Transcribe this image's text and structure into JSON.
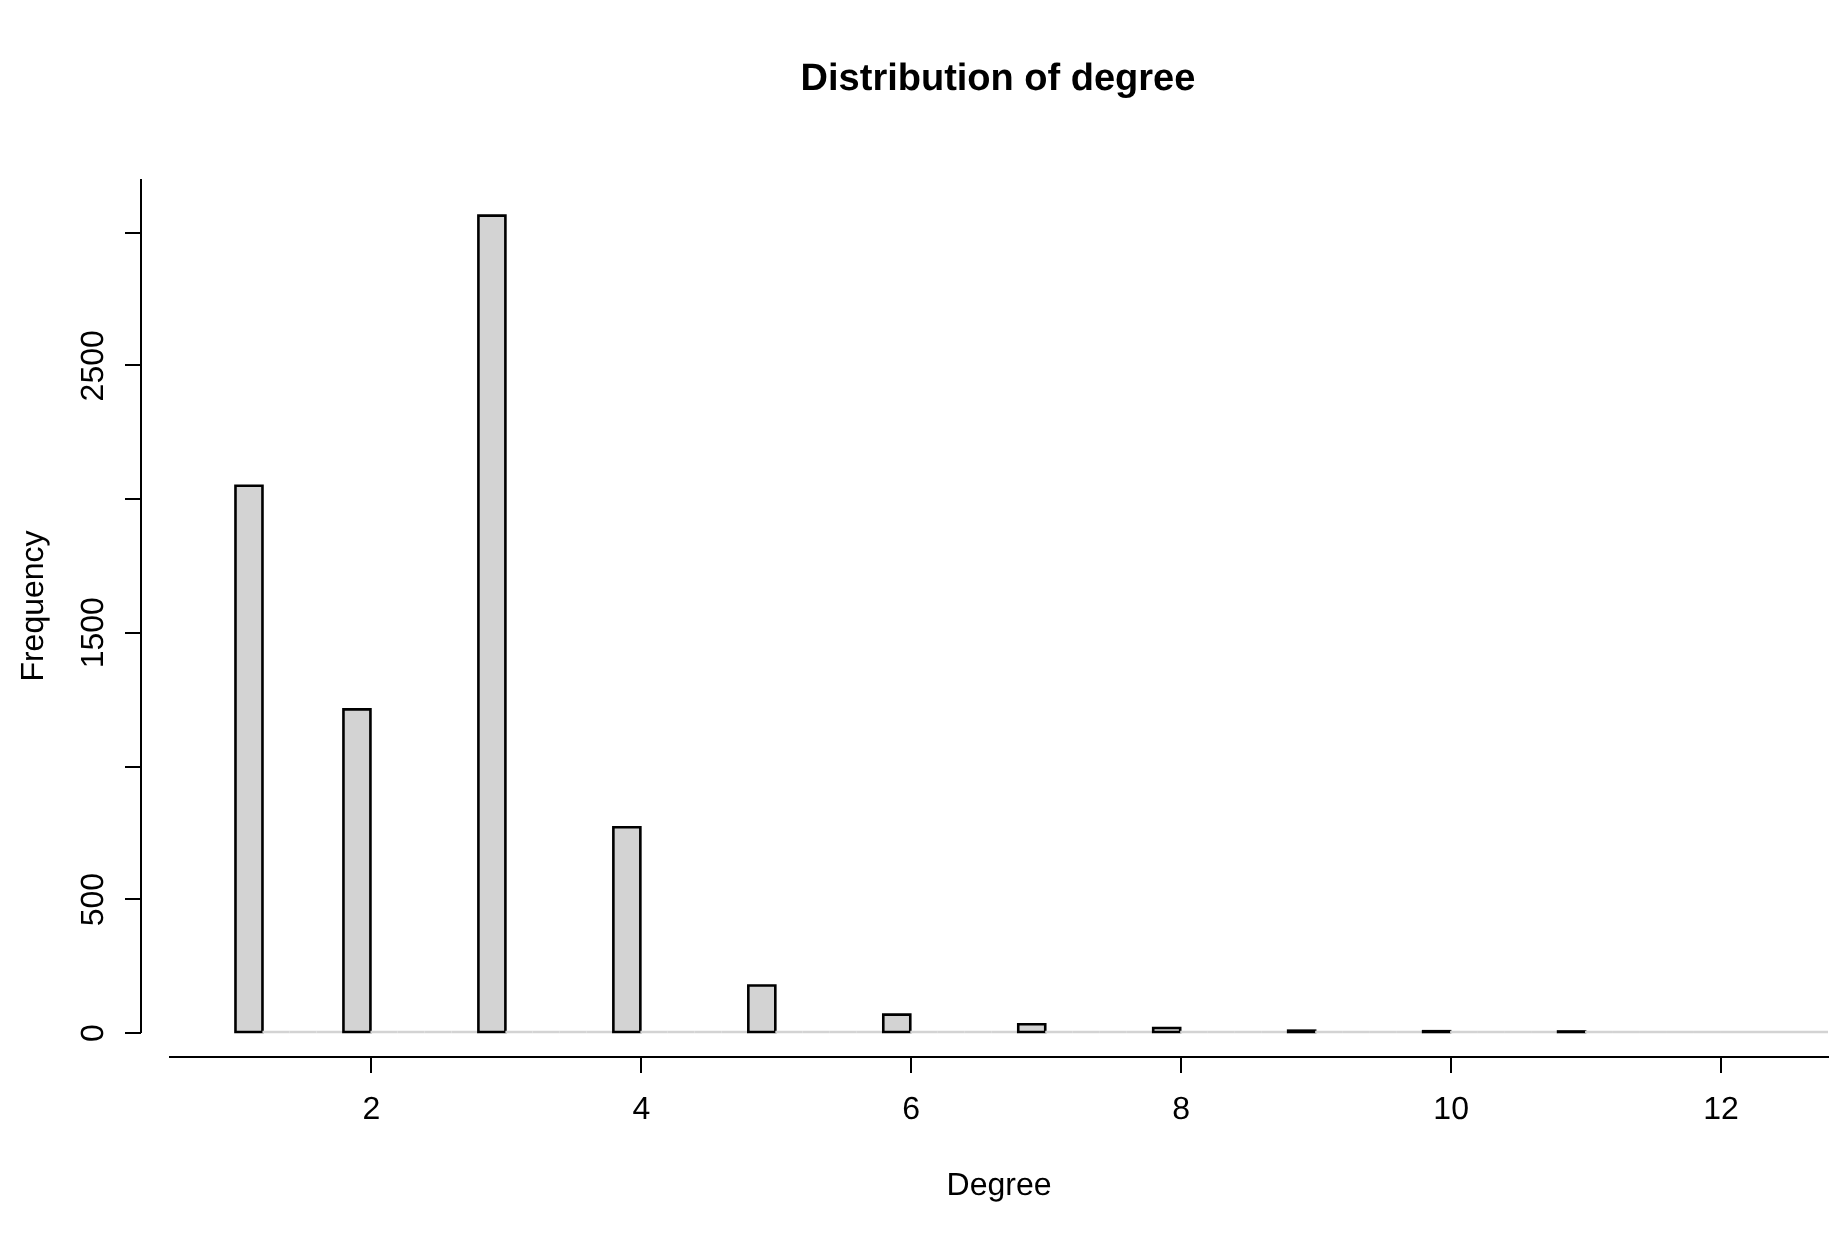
{
  "chart_data": {
    "type": "histogram",
    "title": "Distribution of degree",
    "xlabel": "Degree",
    "ylabel": "Frequency",
    "bins": [
      1,
      1.2,
      1.4,
      1.6,
      1.8,
      2,
      2.2,
      2.4,
      2.6,
      2.8,
      3,
      3.2,
      3.4,
      3.6,
      3.8,
      4,
      4.2,
      4.4,
      4.6,
      4.8,
      5,
      5.2,
      5.4,
      5.6,
      5.8,
      6,
      6.2,
      6.4,
      6.6,
      6.8,
      7,
      7.2,
      7.4,
      7.6,
      7.8,
      8,
      8.2,
      8.4,
      8.6,
      8.8,
      9,
      9.2,
      9.4,
      9.6,
      9.8,
      10,
      10.2,
      10.4,
      10.6,
      10.8,
      11,
      11.2,
      11.4,
      11.6,
      11.8,
      12,
      12.2,
      12.4,
      12.6,
      12.8
    ],
    "values": [
      2047,
      0,
      0,
      0,
      1209,
      0,
      0,
      0,
      0,
      3059,
      0,
      0,
      0,
      0,
      767,
      0,
      0,
      0,
      0,
      174,
      0,
      0,
      0,
      0,
      65,
      0,
      0,
      0,
      0,
      29,
      0,
      0,
      0,
      0,
      15,
      0,
      0,
      0,
      0,
      5,
      0,
      0,
      0,
      0,
      3,
      0,
      0,
      0,
      0,
      2,
      0,
      0,
      0,
      0,
      0,
      0,
      0,
      0,
      0
    ],
    "color": "#d3d3d3",
    "xlim": [
      0.5,
      12.8
    ],
    "xticks": [
      2,
      4,
      6,
      8,
      10,
      12
    ],
    "ylim": [
      0,
      3200
    ],
    "yticks": [
      0,
      500,
      {
        "value": 1000,
        "label": null
      },
      1500,
      {
        "value": 2000,
        "label": null
      },
      2500,
      {
        "value": 3000,
        "label": null
      }
    ],
    "grid": false
  }
}
